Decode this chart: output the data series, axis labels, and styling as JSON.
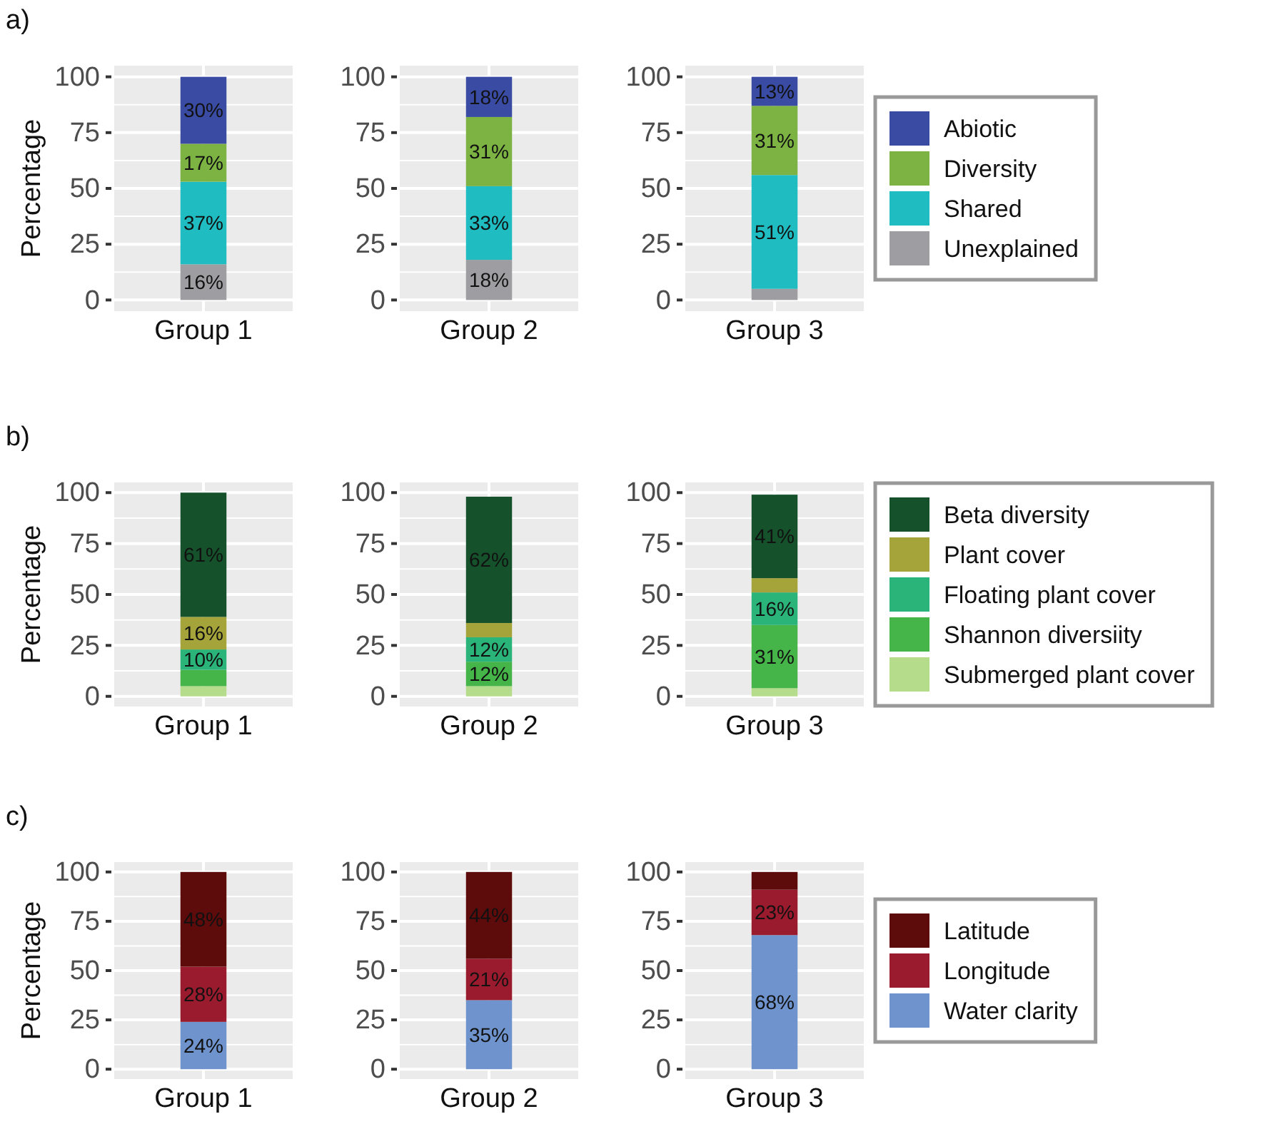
{
  "chart_data": [
    {
      "type": "bar",
      "title": "a)",
      "ylabel": "Percentage",
      "categories": [
        "Group 1"
      ],
      "stacked": true,
      "ylim": [
        -5,
        105
      ],
      "yticks": [
        0,
        25,
        50,
        75,
        100
      ],
      "grid": true,
      "series": [
        {
          "color": "#9e9ea2",
          "values": [
            16
          ],
          "value_labels": [
            "16%"
          ]
        },
        {
          "color": "#1fbcc1",
          "values": [
            37
          ],
          "value_labels": [
            "37%"
          ]
        },
        {
          "color": "#7cb342",
          "values": [
            17
          ],
          "value_labels": [
            "17%"
          ]
        },
        {
          "color": "#3a4ba3",
          "values": [
            30
          ],
          "value_labels": [
            "30%"
          ]
        }
      ]
    },
    {
      "type": "bar",
      "categories": [
        "Group 2"
      ],
      "stacked": true,
      "ylim": [
        -5,
        105
      ],
      "yticks": [
        0,
        25,
        50,
        75,
        100
      ],
      "grid": true,
      "series": [
        {
          "color": "#9e9ea2",
          "values": [
            18
          ],
          "value_labels": [
            "18%"
          ]
        },
        {
          "color": "#1fbcc1",
          "values": [
            33
          ],
          "value_labels": [
            "33%"
          ]
        },
        {
          "color": "#7cb342",
          "values": [
            31
          ],
          "value_labels": [
            "31%"
          ]
        },
        {
          "color": "#3a4ba3",
          "values": [
            18
          ],
          "value_labels": [
            "18%"
          ]
        }
      ]
    },
    {
      "type": "bar",
      "categories": [
        "Group 3"
      ],
      "stacked": true,
      "ylim": [
        -5,
        105
      ],
      "yticks": [
        0,
        25,
        50,
        75,
        100
      ],
      "grid": true,
      "legend": "right",
      "series": [
        {
          "name": "Unexplained",
          "color": "#9e9ea2",
          "values": [
            5
          ],
          "value_labels": [
            null
          ]
        },
        {
          "name": "Shared",
          "color": "#1fbcc1",
          "values": [
            51
          ],
          "value_labels": [
            "51%"
          ]
        },
        {
          "name": "Diversity",
          "color": "#7cb342",
          "values": [
            31
          ],
          "value_labels": [
            "31%"
          ]
        },
        {
          "name": "Abiotic",
          "color": "#3a4ba3",
          "values": [
            13
          ],
          "value_labels": [
            "13%"
          ]
        }
      ]
    },
    {
      "type": "bar",
      "title": "b)",
      "ylabel": "Percentage",
      "categories": [
        "Group 1"
      ],
      "stacked": true,
      "ylim": [
        -5,
        105
      ],
      "yticks": [
        0,
        25,
        50,
        75,
        100
      ],
      "grid": true,
      "series": [
        {
          "color": "#b5dc8a",
          "values": [
            5
          ],
          "value_labels": [
            null
          ]
        },
        {
          "color": "#46b549",
          "values": [
            8
          ],
          "value_labels": [
            null
          ]
        },
        {
          "color": "#2bb47a",
          "values": [
            10
          ],
          "value_labels": [
            "10%"
          ]
        },
        {
          "color": "#a4a43a",
          "values": [
            16
          ],
          "value_labels": [
            "16%"
          ]
        },
        {
          "color": "#15522b",
          "values": [
            61
          ],
          "value_labels": [
            "61%"
          ]
        }
      ]
    },
    {
      "type": "bar",
      "categories": [
        "Group 2"
      ],
      "stacked": true,
      "ylim": [
        -5,
        105
      ],
      "yticks": [
        0,
        25,
        50,
        75,
        100
      ],
      "grid": true,
      "series": [
        {
          "color": "#b5dc8a",
          "values": [
            5
          ],
          "value_labels": [
            null
          ]
        },
        {
          "color": "#46b549",
          "values": [
            12
          ],
          "value_labels": [
            "12%"
          ]
        },
        {
          "color": "#2bb47a",
          "values": [
            12
          ],
          "value_labels": [
            "12%"
          ]
        },
        {
          "color": "#a4a43a",
          "values": [
            7
          ],
          "value_labels": [
            null
          ]
        },
        {
          "color": "#15522b",
          "values": [
            62
          ],
          "value_labels": [
            "62%"
          ]
        }
      ]
    },
    {
      "type": "bar",
      "categories": [
        "Group 3"
      ],
      "stacked": true,
      "ylim": [
        -5,
        105
      ],
      "yticks": [
        0,
        25,
        50,
        75,
        100
      ],
      "grid": true,
      "legend": "right",
      "series": [
        {
          "name": "Submerged plant cover",
          "color": "#b5dc8a",
          "values": [
            4
          ],
          "value_labels": [
            null
          ]
        },
        {
          "name": "Shannon diversiity",
          "color": "#46b549",
          "values": [
            31
          ],
          "value_labels": [
            "31%"
          ]
        },
        {
          "name": "Floating plant cover",
          "color": "#2bb47a",
          "values": [
            16
          ],
          "value_labels": [
            "16%"
          ]
        },
        {
          "name": "Plant cover",
          "color": "#a4a43a",
          "values": [
            7
          ],
          "value_labels": [
            null
          ]
        },
        {
          "name": "Beta diversity",
          "color": "#15522b",
          "values": [
            41
          ],
          "value_labels": [
            "41%"
          ]
        }
      ]
    },
    {
      "type": "bar",
      "title": "c)",
      "ylabel": "Percentage",
      "categories": [
        "Group 1"
      ],
      "stacked": true,
      "ylim": [
        -5,
        105
      ],
      "yticks": [
        0,
        25,
        50,
        75,
        100
      ],
      "grid": true,
      "series": [
        {
          "color": "#6f93cc",
          "values": [
            24
          ],
          "value_labels": [
            "24%"
          ]
        },
        {
          "color": "#9b1b2e",
          "values": [
            28
          ],
          "value_labels": [
            "28%"
          ]
        },
        {
          "color": "#5e0b0b",
          "values": [
            48
          ],
          "value_labels": [
            "48%"
          ]
        }
      ]
    },
    {
      "type": "bar",
      "categories": [
        "Group 2"
      ],
      "stacked": true,
      "ylim": [
        -5,
        105
      ],
      "yticks": [
        0,
        25,
        50,
        75,
        100
      ],
      "grid": true,
      "series": [
        {
          "color": "#6f93cc",
          "values": [
            35
          ],
          "value_labels": [
            "35%"
          ]
        },
        {
          "color": "#9b1b2e",
          "values": [
            21
          ],
          "value_labels": [
            "21%"
          ]
        },
        {
          "color": "#5e0b0b",
          "values": [
            44
          ],
          "value_labels": [
            "44%"
          ]
        }
      ]
    },
    {
      "type": "bar",
      "categories": [
        "Group 3"
      ],
      "stacked": true,
      "ylim": [
        -5,
        105
      ],
      "yticks": [
        0,
        25,
        50,
        75,
        100
      ],
      "grid": true,
      "legend": "right",
      "series": [
        {
          "name": "Water clarity",
          "color": "#6f93cc",
          "values": [
            68
          ],
          "value_labels": [
            "68%"
          ]
        },
        {
          "name": "Longitude",
          "color": "#9b1b2e",
          "values": [
            23
          ],
          "value_labels": [
            "23%"
          ]
        },
        {
          "name": "Latitude",
          "color": "#5e0b0b",
          "values": [
            9
          ],
          "value_labels": [
            null
          ]
        }
      ]
    }
  ]
}
